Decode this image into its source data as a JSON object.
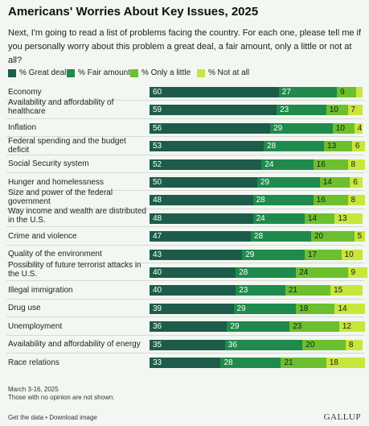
{
  "chart_data": {
    "type": "bar",
    "stacked": true,
    "orientation": "horizontal",
    "title": "Americans' Worries About Key Issues, 2025",
    "subtitle": "Next, I'm going to read a list of problems facing the country. For each one, please tell me if you personally worry about this problem a great deal, a fair amount, only a little or not at all?",
    "legend_placement": "top",
    "xlim": [
      0,
      100
    ],
    "categories": [
      "Economy",
      "Availability and affordability of healthcare",
      "Inflation",
      "Federal spending and the budget deficit",
      "Social Security system",
      "Hunger and homelessness",
      "Size and power of the federal government",
      "Way income and wealth are distributed in the U.S.",
      "Crime and violence",
      "Quality of the environment",
      "Possibility of future terrorist attacks in the U.S.",
      "Illegal immigration",
      "Drug use",
      "Unemployment",
      "Availability and affordability of energy",
      "Race relations"
    ],
    "series": [
      {
        "name": "% Great deal",
        "color": "#1d5c4a",
        "label_color": "#ffffff",
        "values": [
          60,
          59,
          56,
          53,
          52,
          50,
          48,
          48,
          47,
          43,
          40,
          40,
          39,
          36,
          35,
          33
        ]
      },
      {
        "name": "% Fair amount",
        "color": "#1f8a4c",
        "label_color": "#ffffff",
        "values": [
          27,
          23,
          29,
          28,
          24,
          29,
          28,
          24,
          28,
          29,
          28,
          23,
          29,
          29,
          36,
          28
        ]
      },
      {
        "name": "% Only a little",
        "color": "#6cbf2e",
        "label_color": "#1a1a1a",
        "values": [
          9,
          10,
          10,
          13,
          16,
          14,
          16,
          14,
          20,
          17,
          24,
          21,
          18,
          23,
          20,
          21
        ]
      },
      {
        "name": "% Not at all",
        "color": "#c8e63c",
        "label_color": "#1a1a1a",
        "values": [
          3,
          7,
          4,
          6,
          8,
          6,
          8,
          13,
          5,
          10,
          9,
          15,
          14,
          12,
          8,
          18
        ]
      }
    ],
    "show_value_labels_min": 4
  },
  "notes": {
    "dates": "March 3-16, 2025",
    "caveat": "Those with no opinion are not shown."
  },
  "footer": {
    "links": "Get the data • Download image",
    "brand": "GALLUP"
  }
}
